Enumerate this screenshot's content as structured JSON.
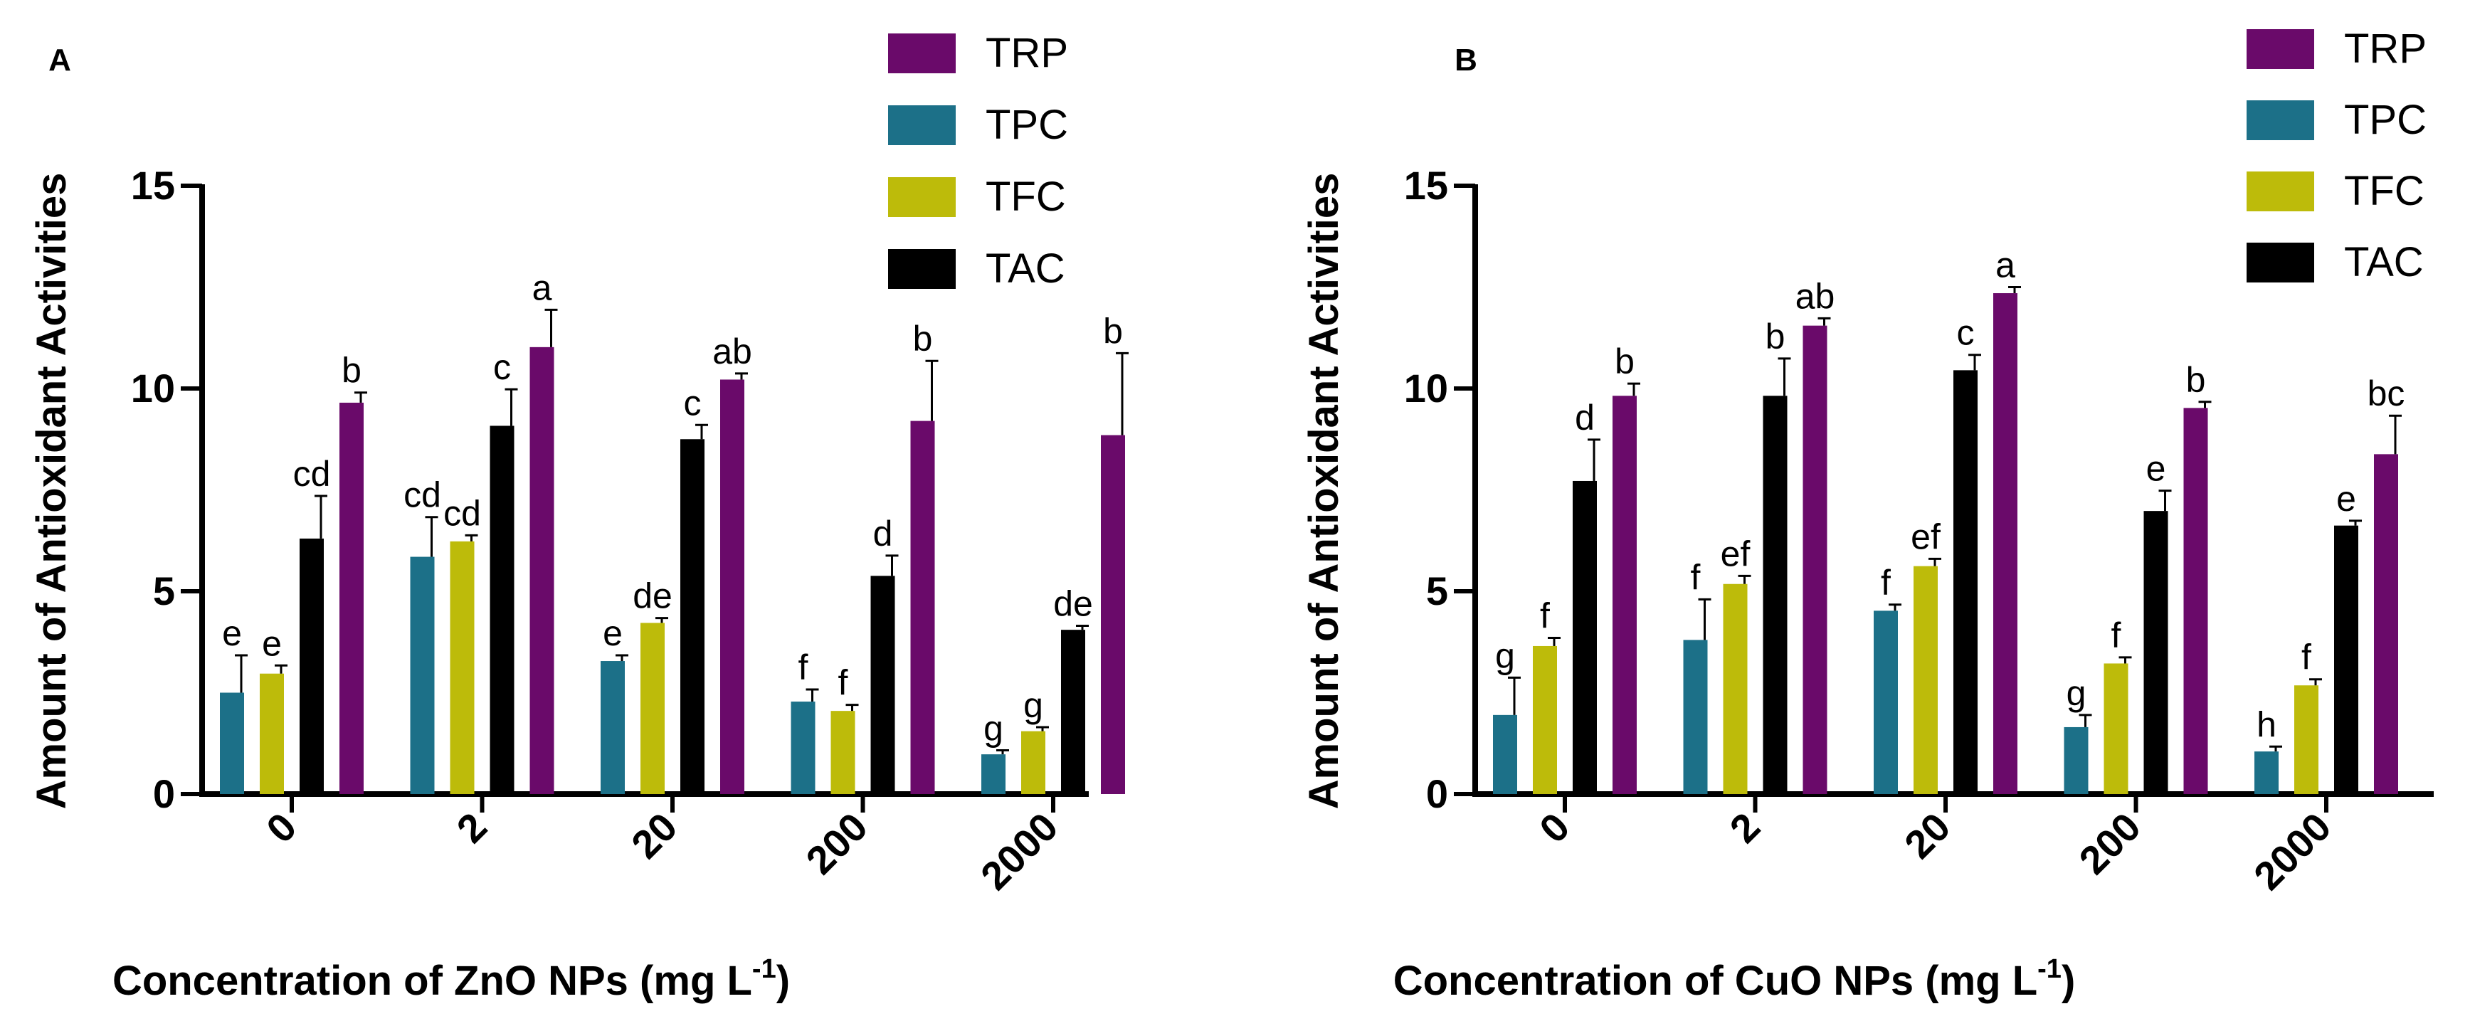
{
  "colors": {
    "TRP": "#6a0a6a",
    "TPC": "#1c7088",
    "TFC": "#bdbb0a",
    "TAC": "#000000",
    "axis": "#000000"
  },
  "chart_data": [
    {
      "type": "bar",
      "panel_label": "A",
      "xlabel": "Concentration of ZnO NPs  (mg L",
      "xlabel_sup": "-1",
      "xlabel_close": ")",
      "ylabel": "Amount of Antioxidant Activities",
      "ylim": [
        0,
        15
      ],
      "yticks": [
        "0",
        "5",
        "10",
        "15"
      ],
      "yticks_values": [
        0,
        5,
        10,
        15
      ],
      "categories": [
        "0",
        "2",
        "20",
        "200",
        "2000"
      ],
      "legend": [
        "TRP",
        "TPC",
        "TFC",
        "TAC"
      ],
      "legend_position": "top-right",
      "series": [
        {
          "name": "TPC",
          "values": [
            2.5,
            5.85,
            3.28,
            2.28,
            0.98
          ],
          "errors": [
            0.92,
            0.98,
            0.14,
            0.3,
            0.1
          ],
          "letters": [
            "e",
            "cd",
            "e",
            "f",
            "g"
          ]
        },
        {
          "name": "TFC",
          "values": [
            2.97,
            6.23,
            4.22,
            2.05,
            1.55
          ],
          "errors": [
            0.2,
            0.15,
            0.12,
            0.15,
            0.1
          ],
          "letters": [
            "e",
            "cd",
            "de",
            "f",
            "g"
          ]
        },
        {
          "name": "TAC",
          "values": [
            6.3,
            9.08,
            8.75,
            5.38,
            4.05
          ],
          "errors": [
            1.05,
            0.9,
            0.35,
            0.5,
            0.1
          ],
          "letters": [
            "cd",
            "c",
            "c",
            "d",
            "de"
          ]
        },
        {
          "name": "TRP",
          "values": [
            9.65,
            11.02,
            10.22,
            9.2,
            8.85
          ],
          "errors": [
            0.25,
            0.92,
            0.15,
            1.48,
            2.02
          ],
          "letters": [
            "b",
            "a",
            "ab",
            "b",
            "b"
          ]
        }
      ]
    },
    {
      "type": "bar",
      "panel_label": "B",
      "xlabel": "Concentration of CuO NPs  (mg L",
      "xlabel_sup": "-1",
      "xlabel_close": ")",
      "ylabel": "Amount of Antioxidant Activities",
      "ylim": [
        0,
        15
      ],
      "yticks": [
        "0",
        "5",
        "10",
        "15"
      ],
      "yticks_values": [
        0,
        5,
        10,
        15
      ],
      "categories": [
        "0",
        "2",
        "20",
        "200",
        "2000"
      ],
      "legend": [
        "TRP",
        "TPC",
        "TFC",
        "TAC"
      ],
      "legend_position": "top-right",
      "series": [
        {
          "name": "TPC",
          "values": [
            1.95,
            3.8,
            4.52,
            1.65,
            1.05
          ],
          "errors": [
            0.92,
            1.0,
            0.15,
            0.3,
            0.12
          ],
          "letters": [
            "g",
            "f",
            "f",
            "g",
            "h"
          ]
        },
        {
          "name": "TFC",
          "values": [
            3.65,
            5.18,
            5.62,
            3.22,
            2.68
          ],
          "errors": [
            0.2,
            0.2,
            0.18,
            0.15,
            0.15
          ],
          "letters": [
            "f",
            "ef",
            "ef",
            "f",
            "f"
          ]
        },
        {
          "name": "TAC",
          "values": [
            7.72,
            9.82,
            10.45,
            6.98,
            6.62
          ],
          "errors": [
            1.02,
            0.92,
            0.38,
            0.5,
            0.12
          ],
          "letters": [
            "d",
            "b",
            "c",
            "e",
            "e"
          ]
        },
        {
          "name": "TRP",
          "values": [
            9.82,
            11.55,
            12.35,
            9.52,
            8.38
          ],
          "errors": [
            0.3,
            0.18,
            0.15,
            0.15,
            0.95
          ],
          "letters": [
            "b",
            "ab",
            "a",
            "b",
            "bc"
          ]
        }
      ]
    }
  ]
}
